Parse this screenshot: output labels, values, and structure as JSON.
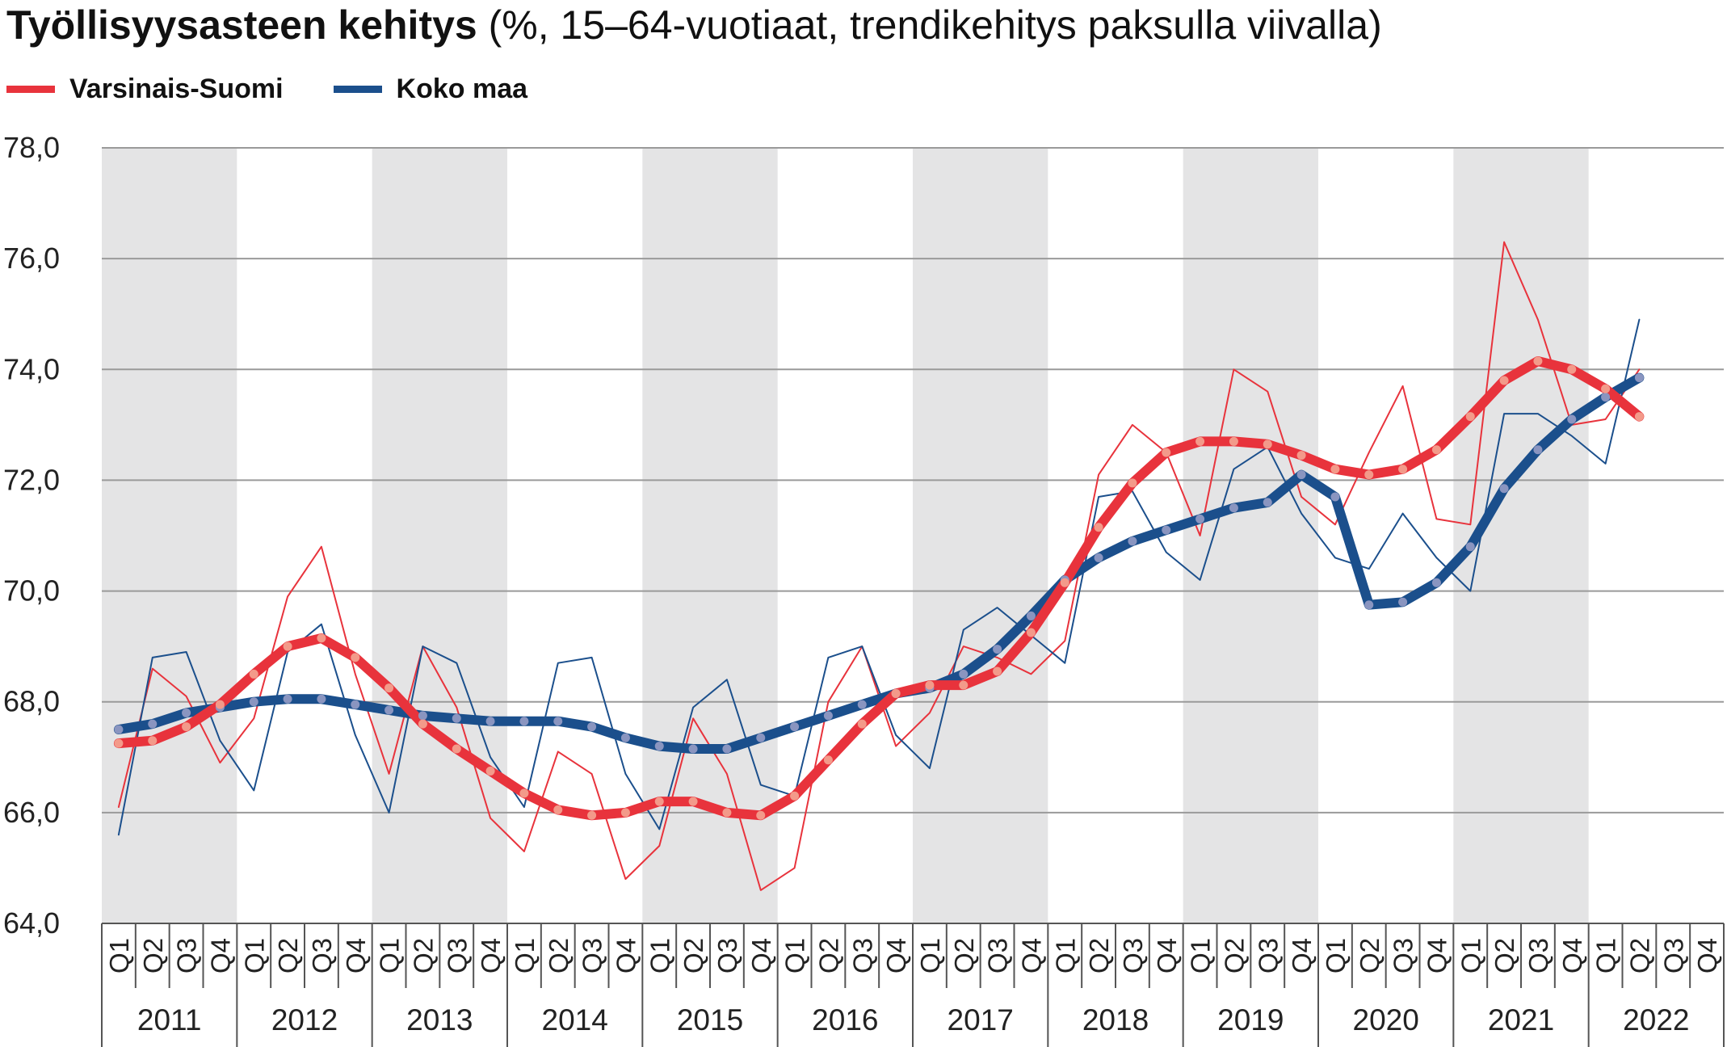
{
  "title": {
    "bold": "Työllisyysasteen kehitys",
    "light": " (%, 15–64-vuotiaat, trendikehitys paksulla viivalla)"
  },
  "legend": [
    {
      "label": "Varsinais-Suomi",
      "color": "#e8333c"
    },
    {
      "label": "Koko maa",
      "color": "#1b4f8c"
    }
  ],
  "chart_data": {
    "type": "line",
    "title": "Työllisyysasteen kehitys",
    "subtitle": "(%, 15–64-vuotiaat, trendikehitys paksulla viivalla)",
    "ylim": [
      64,
      78
    ],
    "yticks": [
      "64,0",
      "66,0",
      "68,0",
      "70,0",
      "72,0",
      "74,0",
      "76,0",
      "78,0"
    ],
    "ytick_values": [
      64,
      66,
      68,
      70,
      72,
      74,
      76,
      78
    ],
    "years": [
      "2011",
      "2012",
      "2013",
      "2014",
      "2015",
      "2016",
      "2017",
      "2018",
      "2019",
      "2020",
      "2021",
      "2022"
    ],
    "quarters": [
      "Q1",
      "Q2",
      "Q3",
      "Q4"
    ],
    "grid": true,
    "legend_position": "top-left",
    "series": [
      {
        "name": "Varsinais-Suomi",
        "kind": "quarterly",
        "color": "#e8333c",
        "values": [
          66.1,
          68.6,
          68.1,
          66.9,
          67.7,
          69.9,
          70.8,
          68.5,
          66.7,
          69.0,
          67.9,
          65.9,
          65.3,
          67.1,
          66.7,
          64.8,
          65.4,
          67.7,
          66.7,
          64.6,
          65.0,
          68.0,
          69.0,
          67.2,
          67.8,
          69.0,
          68.8,
          68.5,
          69.1,
          72.1,
          73.0,
          72.5,
          71.0,
          74.0,
          73.6,
          71.7,
          71.2,
          72.5,
          73.7,
          71.3,
          71.2,
          76.3,
          74.9,
          73.0,
          73.1,
          74.0
        ]
      },
      {
        "name": "Varsinais-Suomi trend",
        "kind": "trend",
        "color": "#e8333c",
        "values": [
          67.25,
          67.3,
          67.55,
          67.95,
          68.5,
          69.0,
          69.15,
          68.8,
          68.25,
          67.6,
          67.15,
          66.75,
          66.35,
          66.05,
          65.95,
          66.0,
          66.2,
          66.2,
          66.0,
          65.95,
          66.3,
          66.95,
          67.6,
          68.15,
          68.3,
          68.3,
          68.55,
          69.25,
          70.15,
          71.15,
          71.95,
          72.5,
          72.7,
          72.7,
          72.65,
          72.45,
          72.2,
          72.1,
          72.2,
          72.55,
          73.15,
          73.8,
          74.15,
          74.0,
          73.65,
          73.15
        ]
      },
      {
        "name": "Koko maa",
        "kind": "quarterly",
        "color": "#1b4f8c",
        "values": [
          65.6,
          68.8,
          68.9,
          67.3,
          66.4,
          68.9,
          69.4,
          67.4,
          66.0,
          69.0,
          68.7,
          67.0,
          66.1,
          68.7,
          68.8,
          66.7,
          65.7,
          67.9,
          68.4,
          66.5,
          66.3,
          68.8,
          69.0,
          67.4,
          66.8,
          69.3,
          69.7,
          69.2,
          68.7,
          71.7,
          71.8,
          70.7,
          70.2,
          72.2,
          72.6,
          71.4,
          70.6,
          70.4,
          71.4,
          70.6,
          70.0,
          73.2,
          73.2,
          72.8,
          72.3,
          74.9
        ]
      },
      {
        "name": "Koko maa trend",
        "kind": "trend",
        "color": "#1b4f8c",
        "values": [
          67.5,
          67.6,
          67.8,
          67.9,
          68.0,
          68.05,
          68.05,
          67.95,
          67.85,
          67.75,
          67.7,
          67.65,
          67.65,
          67.65,
          67.55,
          67.35,
          67.2,
          67.15,
          67.15,
          67.35,
          67.55,
          67.75,
          67.95,
          68.15,
          68.25,
          68.5,
          68.95,
          69.55,
          70.2,
          70.6,
          70.9,
          71.1,
          71.3,
          71.5,
          71.6,
          72.1,
          71.7,
          69.75,
          69.8,
          70.15,
          70.8,
          71.85,
          72.55,
          73.1,
          73.5,
          73.85
        ]
      }
    ]
  }
}
